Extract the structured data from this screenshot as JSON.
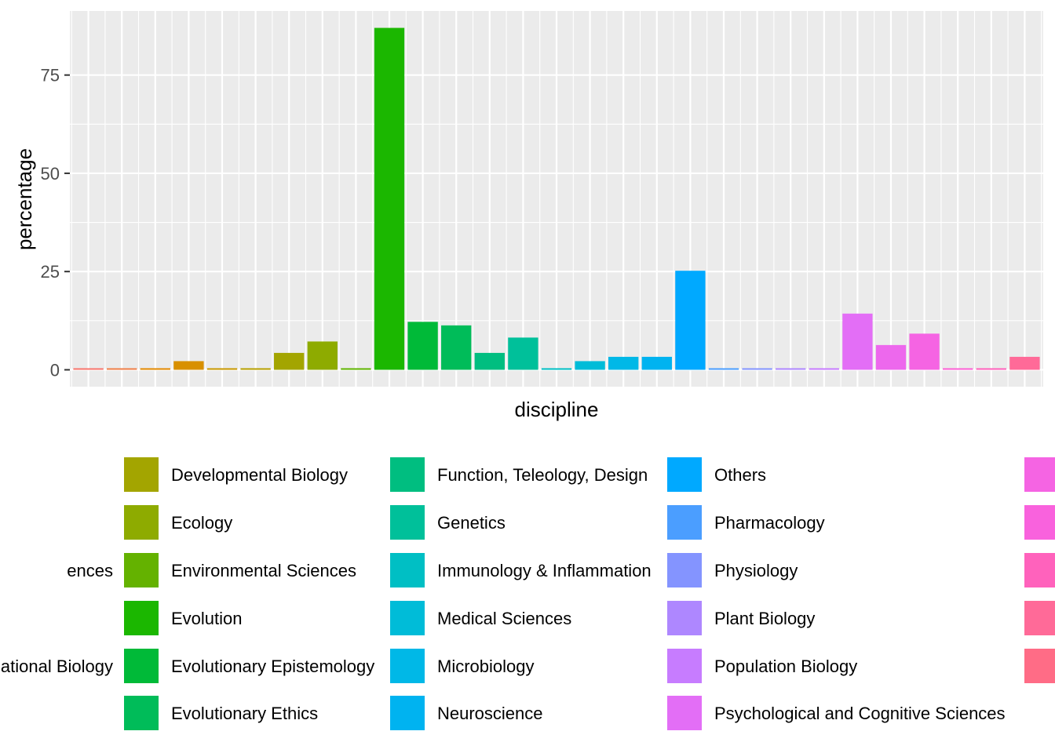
{
  "chart_data": {
    "type": "bar",
    "xlabel": "discipline",
    "ylabel": "percentage",
    "yticks": [
      0,
      25,
      50,
      75
    ],
    "ylim": [
      -4.3,
      91.3
    ],
    "grid": true,
    "legend_position": "bottom",
    "colors": {
      "panel_background": "#EBEBEB",
      "grid_line": "#FFFFFF",
      "axis_text": "#4D4D4D"
    },
    "bars": [
      {
        "value": 0.4,
        "color": "#F8766D"
      },
      {
        "value": 0.4,
        "color": "#EF7F49"
      },
      {
        "value": 0.4,
        "color": "#E38900"
      },
      {
        "value": 2.2,
        "color": "#D89000"
      },
      {
        "value": 0.4,
        "color": "#C99800"
      },
      {
        "value": 0.4,
        "color": "#B79F00"
      },
      {
        "value": 4.3,
        "color": "#A3A500"
      },
      {
        "value": 7.2,
        "color": "#8EAB00"
      },
      {
        "value": 0.4,
        "color": "#5FB400"
      },
      {
        "value": 87.0,
        "color": "#1BB700"
      },
      {
        "value": 12.2,
        "color": "#00BA38"
      },
      {
        "value": 11.3,
        "color": "#00BC59"
      },
      {
        "value": 4.3,
        "color": "#00BE80"
      },
      {
        "value": 8.2,
        "color": "#00C09A"
      },
      {
        "value": 0.4,
        "color": "#00BFC4"
      },
      {
        "value": 2.2,
        "color": "#00BCD8"
      },
      {
        "value": 3.3,
        "color": "#00B8E7"
      },
      {
        "value": 3.3,
        "color": "#00B3F0"
      },
      {
        "value": 25.2,
        "color": "#00A9FF"
      },
      {
        "value": 0.4,
        "color": "#4B9EFF"
      },
      {
        "value": 0.4,
        "color": "#8494FF"
      },
      {
        "value": 0.4,
        "color": "#AE87FF"
      },
      {
        "value": 0.4,
        "color": "#C77CFF"
      },
      {
        "value": 14.3,
        "color": "#E36EF6"
      },
      {
        "value": 6.3,
        "color": "#ED68ED"
      },
      {
        "value": 9.2,
        "color": "#F564E3"
      },
      {
        "value": 0.4,
        "color": "#FC61D5"
      },
      {
        "value": 0.4,
        "color": "#FF62BC"
      },
      {
        "value": 3.3,
        "color": "#FF6A98"
      }
    ],
    "legend": [
      {
        "label": "ences",
        "color": ""
      },
      {
        "label": "ational Biology",
        "color": ""
      },
      {
        "label": "Developmental Biology",
        "color": "#A3A500"
      },
      {
        "label": "Ecology",
        "color": "#8EAB00"
      },
      {
        "label": "Environmental Sciences",
        "color": "#64B200"
      },
      {
        "label": "Evolution",
        "color": "#1BB700"
      },
      {
        "label": "Evolutionary Epistemology",
        "color": "#00BA38"
      },
      {
        "label": "Evolutionary Ethics",
        "color": "#00BC59"
      },
      {
        "label": "Function, Teleology, Design",
        "color": "#00BE80"
      },
      {
        "label": "Genetics",
        "color": "#00C09A"
      },
      {
        "label": "Immunology & Inflammation",
        "color": "#00BFC4"
      },
      {
        "label": "Medical Sciences",
        "color": "#00BCD8"
      },
      {
        "label": "Microbiology",
        "color": "#00B8E7"
      },
      {
        "label": "Neuroscience",
        "color": "#00B3F0"
      },
      {
        "label": "Others",
        "color": "#00A9FF"
      },
      {
        "label": "Pharmacology",
        "color": "#4B9EFF"
      },
      {
        "label": "Physiology",
        "color": "#8494FF"
      },
      {
        "label": "Plant Biology",
        "color": "#AE87FF"
      },
      {
        "label": "Population Biology",
        "color": "#C77CFF"
      },
      {
        "label": "Psychological and Cognitive Sciences",
        "color": "#E36EF6"
      },
      {
        "label": "",
        "color": "#F564E3"
      },
      {
        "label": "",
        "color": "#F962DD"
      },
      {
        "label": "",
        "color": "#FF62BC"
      },
      {
        "label": "",
        "color": "#FF6A98"
      },
      {
        "label": "",
        "color": "#FF6C86"
      }
    ]
  }
}
